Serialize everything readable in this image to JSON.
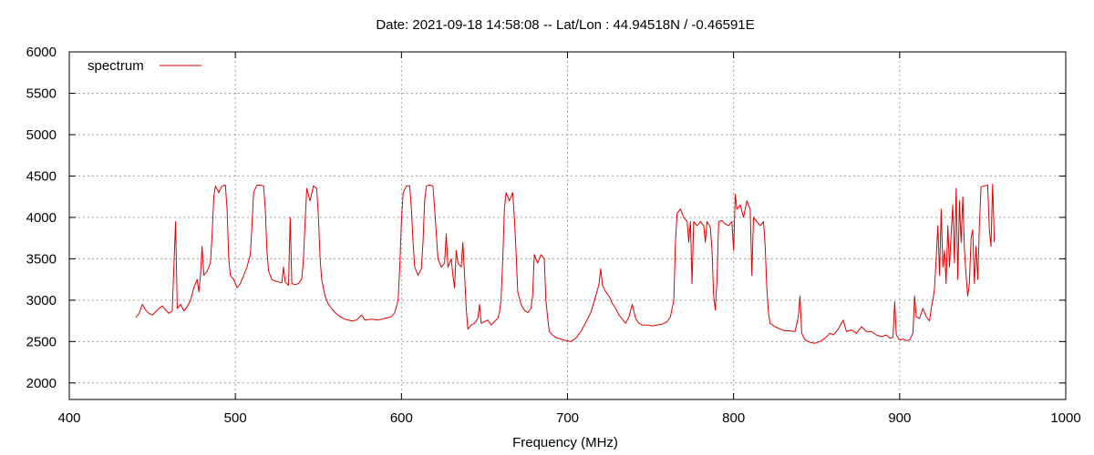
{
  "chart_data": {
    "type": "line",
    "title": "Date: 2021-09-18 14:58:08  --  Lat/Lon : 44.94518N / -0.46591E",
    "xlabel": "Frequency (MHz)",
    "ylabel": "",
    "xlim": [
      400,
      1000
    ],
    "ylim": [
      1800,
      6000
    ],
    "x_ticks": [
      400,
      500,
      600,
      700,
      800,
      900,
      1000
    ],
    "y_ticks": [
      2000,
      2500,
      3000,
      3500,
      4000,
      4500,
      5000,
      5500,
      6000
    ],
    "grid": true,
    "legend_position": "top-left",
    "series": [
      {
        "name": "spectrum",
        "color": "#e00000",
        "points": [
          [
            440,
            2790
          ],
          [
            442,
            2840
          ],
          [
            444,
            2950
          ],
          [
            446,
            2880
          ],
          [
            448,
            2840
          ],
          [
            450,
            2820
          ],
          [
            452,
            2860
          ],
          [
            454,
            2900
          ],
          [
            456,
            2930
          ],
          [
            458,
            2880
          ],
          [
            460,
            2840
          ],
          [
            462,
            2870
          ],
          [
            464,
            3950
          ],
          [
            465,
            2900
          ],
          [
            467,
            2950
          ],
          [
            469,
            2870
          ],
          [
            471,
            2920
          ],
          [
            473,
            3000
          ],
          [
            475,
            3150
          ],
          [
            477,
            3250
          ],
          [
            478,
            3100
          ],
          [
            479,
            3300
          ],
          [
            480,
            3650
          ],
          [
            481,
            3300
          ],
          [
            483,
            3350
          ],
          [
            485,
            3450
          ],
          [
            486,
            3800
          ],
          [
            487,
            4250
          ],
          [
            488,
            4380
          ],
          [
            490,
            4300
          ],
          [
            492,
            4380
          ],
          [
            494,
            4390
          ],
          [
            495,
            4100
          ],
          [
            496,
            3500
          ],
          [
            497,
            3300
          ],
          [
            499,
            3250
          ],
          [
            501,
            3150
          ],
          [
            503,
            3200
          ],
          [
            505,
            3300
          ],
          [
            507,
            3400
          ],
          [
            509,
            3550
          ],
          [
            510,
            3900
          ],
          [
            511,
            4300
          ],
          [
            513,
            4390
          ],
          [
            515,
            4390
          ],
          [
            517,
            4380
          ],
          [
            518,
            4100
          ],
          [
            519,
            3600
          ],
          [
            520,
            3350
          ],
          [
            522,
            3250
          ],
          [
            524,
            3230
          ],
          [
            526,
            3220
          ],
          [
            528,
            3210
          ],
          [
            529,
            3400
          ],
          [
            530,
            3220
          ],
          [
            532,
            3180
          ],
          [
            533,
            4000
          ],
          [
            534,
            3200
          ],
          [
            536,
            3190
          ],
          [
            538,
            3200
          ],
          [
            540,
            3260
          ],
          [
            541,
            3500
          ],
          [
            542,
            3950
          ],
          [
            543,
            4350
          ],
          [
            545,
            4200
          ],
          [
            547,
            4380
          ],
          [
            549,
            4350
          ],
          [
            550,
            4000
          ],
          [
            551,
            3500
          ],
          [
            552,
            3250
          ],
          [
            554,
            3050
          ],
          [
            556,
            2950
          ],
          [
            558,
            2900
          ],
          [
            560,
            2850
          ],
          [
            563,
            2800
          ],
          [
            566,
            2770
          ],
          [
            570,
            2750
          ],
          [
            573,
            2760
          ],
          [
            576,
            2820
          ],
          [
            578,
            2760
          ],
          [
            582,
            2770
          ],
          [
            586,
            2760
          ],
          [
            590,
            2780
          ],
          [
            594,
            2800
          ],
          [
            596,
            2850
          ],
          [
            598,
            3000
          ],
          [
            599,
            3400
          ],
          [
            600,
            3950
          ],
          [
            601,
            4300
          ],
          [
            603,
            4380
          ],
          [
            605,
            4380
          ],
          [
            606,
            4100
          ],
          [
            607,
            3700
          ],
          [
            608,
            3400
          ],
          [
            610,
            3300
          ],
          [
            612,
            3380
          ],
          [
            613,
            3700
          ],
          [
            614,
            4200
          ],
          [
            615,
            4380
          ],
          [
            617,
            4390
          ],
          [
            619,
            4380
          ],
          [
            620,
            4100
          ],
          [
            621,
            3800
          ],
          [
            622,
            3500
          ],
          [
            624,
            3400
          ],
          [
            626,
            3450
          ],
          [
            627,
            3800
          ],
          [
            628,
            3400
          ],
          [
            630,
            3500
          ],
          [
            631,
            3300
          ],
          [
            632,
            3150
          ],
          [
            633,
            3600
          ],
          [
            634,
            3450
          ],
          [
            636,
            3400
          ],
          [
            637,
            3700
          ],
          [
            638,
            3300
          ],
          [
            639,
            2900
          ],
          [
            640,
            2650
          ],
          [
            642,
            2700
          ],
          [
            644,
            2720
          ],
          [
            646,
            2780
          ],
          [
            647,
            2950
          ],
          [
            648,
            2720
          ],
          [
            650,
            2740
          ],
          [
            652,
            2760
          ],
          [
            654,
            2700
          ],
          [
            656,
            2740
          ],
          [
            658,
            2780
          ],
          [
            659,
            2850
          ],
          [
            660,
            3000
          ],
          [
            661,
            3500
          ],
          [
            662,
            4100
          ],
          [
            663,
            4300
          ],
          [
            665,
            4200
          ],
          [
            667,
            4300
          ],
          [
            668,
            4000
          ],
          [
            669,
            3600
          ],
          [
            670,
            3100
          ],
          [
            672,
            2950
          ],
          [
            674,
            2880
          ],
          [
            676,
            2850
          ],
          [
            678,
            2900
          ],
          [
            679,
            3050
          ],
          [
            680,
            3550
          ],
          [
            682,
            3450
          ],
          [
            684,
            3550
          ],
          [
            686,
            3500
          ],
          [
            687,
            3000
          ],
          [
            688,
            2800
          ],
          [
            689,
            2620
          ],
          [
            691,
            2580
          ],
          [
            693,
            2550
          ],
          [
            696,
            2530
          ],
          [
            699,
            2510
          ],
          [
            702,
            2500
          ],
          [
            705,
            2540
          ],
          [
            708,
            2620
          ],
          [
            711,
            2730
          ],
          [
            714,
            2850
          ],
          [
            716,
            2980
          ],
          [
            718,
            3120
          ],
          [
            719,
            3200
          ],
          [
            720,
            3380
          ],
          [
            721,
            3180
          ],
          [
            723,
            3100
          ],
          [
            725,
            3050
          ],
          [
            727,
            2960
          ],
          [
            729,
            2900
          ],
          [
            731,
            2820
          ],
          [
            733,
            2770
          ],
          [
            735,
            2720
          ],
          [
            737,
            2800
          ],
          [
            739,
            2950
          ],
          [
            741,
            2780
          ],
          [
            743,
            2720
          ],
          [
            745,
            2700
          ],
          [
            748,
            2700
          ],
          [
            751,
            2690
          ],
          [
            754,
            2700
          ],
          [
            757,
            2710
          ],
          [
            760,
            2740
          ],
          [
            762,
            2800
          ],
          [
            764,
            3000
          ],
          [
            765,
            3700
          ],
          [
            766,
            4050
          ],
          [
            768,
            4100
          ],
          [
            770,
            4000
          ],
          [
            772,
            3950
          ],
          [
            773,
            3700
          ],
          [
            774,
            3950
          ],
          [
            775,
            3200
          ],
          [
            776,
            3950
          ],
          [
            778,
            3900
          ],
          [
            780,
            3950
          ],
          [
            782,
            3900
          ],
          [
            783,
            3700
          ],
          [
            784,
            3950
          ],
          [
            786,
            3880
          ],
          [
            787,
            3600
          ],
          [
            788,
            3050
          ],
          [
            789,
            2880
          ],
          [
            790,
            3250
          ],
          [
            791,
            3950
          ],
          [
            793,
            3960
          ],
          [
            795,
            3920
          ],
          [
            797,
            3900
          ],
          [
            799,
            3950
          ],
          [
            800,
            3600
          ],
          [
            801,
            4280
          ],
          [
            802,
            4100
          ],
          [
            804,
            4150
          ],
          [
            806,
            4000
          ],
          [
            808,
            4200
          ],
          [
            810,
            4100
          ],
          [
            811,
            3300
          ],
          [
            812,
            4000
          ],
          [
            814,
            3950
          ],
          [
            816,
            3900
          ],
          [
            818,
            3950
          ],
          [
            819,
            3650
          ],
          [
            820,
            3150
          ],
          [
            821,
            2850
          ],
          [
            822,
            2720
          ],
          [
            825,
            2680
          ],
          [
            828,
            2650
          ],
          [
            831,
            2630
          ],
          [
            834,
            2630
          ],
          [
            837,
            2620
          ],
          [
            839,
            2800
          ],
          [
            840,
            3050
          ],
          [
            841,
            2600
          ],
          [
            843,
            2520
          ],
          [
            846,
            2490
          ],
          [
            849,
            2480
          ],
          [
            852,
            2500
          ],
          [
            855,
            2540
          ],
          [
            858,
            2600
          ],
          [
            860,
            2580
          ],
          [
            863,
            2650
          ],
          [
            866,
            2760
          ],
          [
            868,
            2620
          ],
          [
            871,
            2640
          ],
          [
            874,
            2600
          ],
          [
            877,
            2680
          ],
          [
            880,
            2620
          ],
          [
            883,
            2620
          ],
          [
            886,
            2580
          ],
          [
            889,
            2560
          ],
          [
            892,
            2580
          ],
          [
            894,
            2540
          ],
          [
            896,
            2550
          ],
          [
            897,
            2980
          ],
          [
            898,
            2580
          ],
          [
            900,
            2520
          ],
          [
            902,
            2530
          ],
          [
            904,
            2510
          ],
          [
            906,
            2520
          ],
          [
            908,
            2600
          ],
          [
            909,
            3050
          ],
          [
            910,
            2800
          ],
          [
            912,
            2780
          ],
          [
            914,
            2900
          ],
          [
            916,
            2800
          ],
          [
            918,
            2750
          ],
          [
            919,
            2900
          ],
          [
            920,
            3000
          ],
          [
            921,
            3150
          ],
          [
            922,
            3500
          ],
          [
            923,
            3900
          ],
          [
            924,
            3300
          ],
          [
            925,
            4100
          ],
          [
            926,
            3400
          ],
          [
            927,
            3600
          ],
          [
            928,
            3200
          ],
          [
            929,
            3900
          ],
          [
            930,
            3400
          ],
          [
            931,
            3800
          ],
          [
            932,
            4150
          ],
          [
            933,
            3450
          ],
          [
            934,
            4350
          ],
          [
            935,
            3250
          ],
          [
            936,
            4200
          ],
          [
            937,
            3700
          ],
          [
            938,
            4250
          ],
          [
            939,
            3600
          ],
          [
            940,
            3300
          ],
          [
            941,
            3050
          ],
          [
            942,
            3200
          ],
          [
            943,
            3750
          ],
          [
            944,
            3850
          ],
          [
            945,
            3200
          ],
          [
            946,
            3650
          ],
          [
            947,
            3250
          ],
          [
            948,
            3900
          ],
          [
            949,
            4370
          ],
          [
            951,
            4380
          ],
          [
            953,
            4390
          ],
          [
            954,
            3850
          ],
          [
            955,
            3650
          ],
          [
            956,
            4400
          ],
          [
            957,
            3700
          ]
        ]
      }
    ]
  }
}
